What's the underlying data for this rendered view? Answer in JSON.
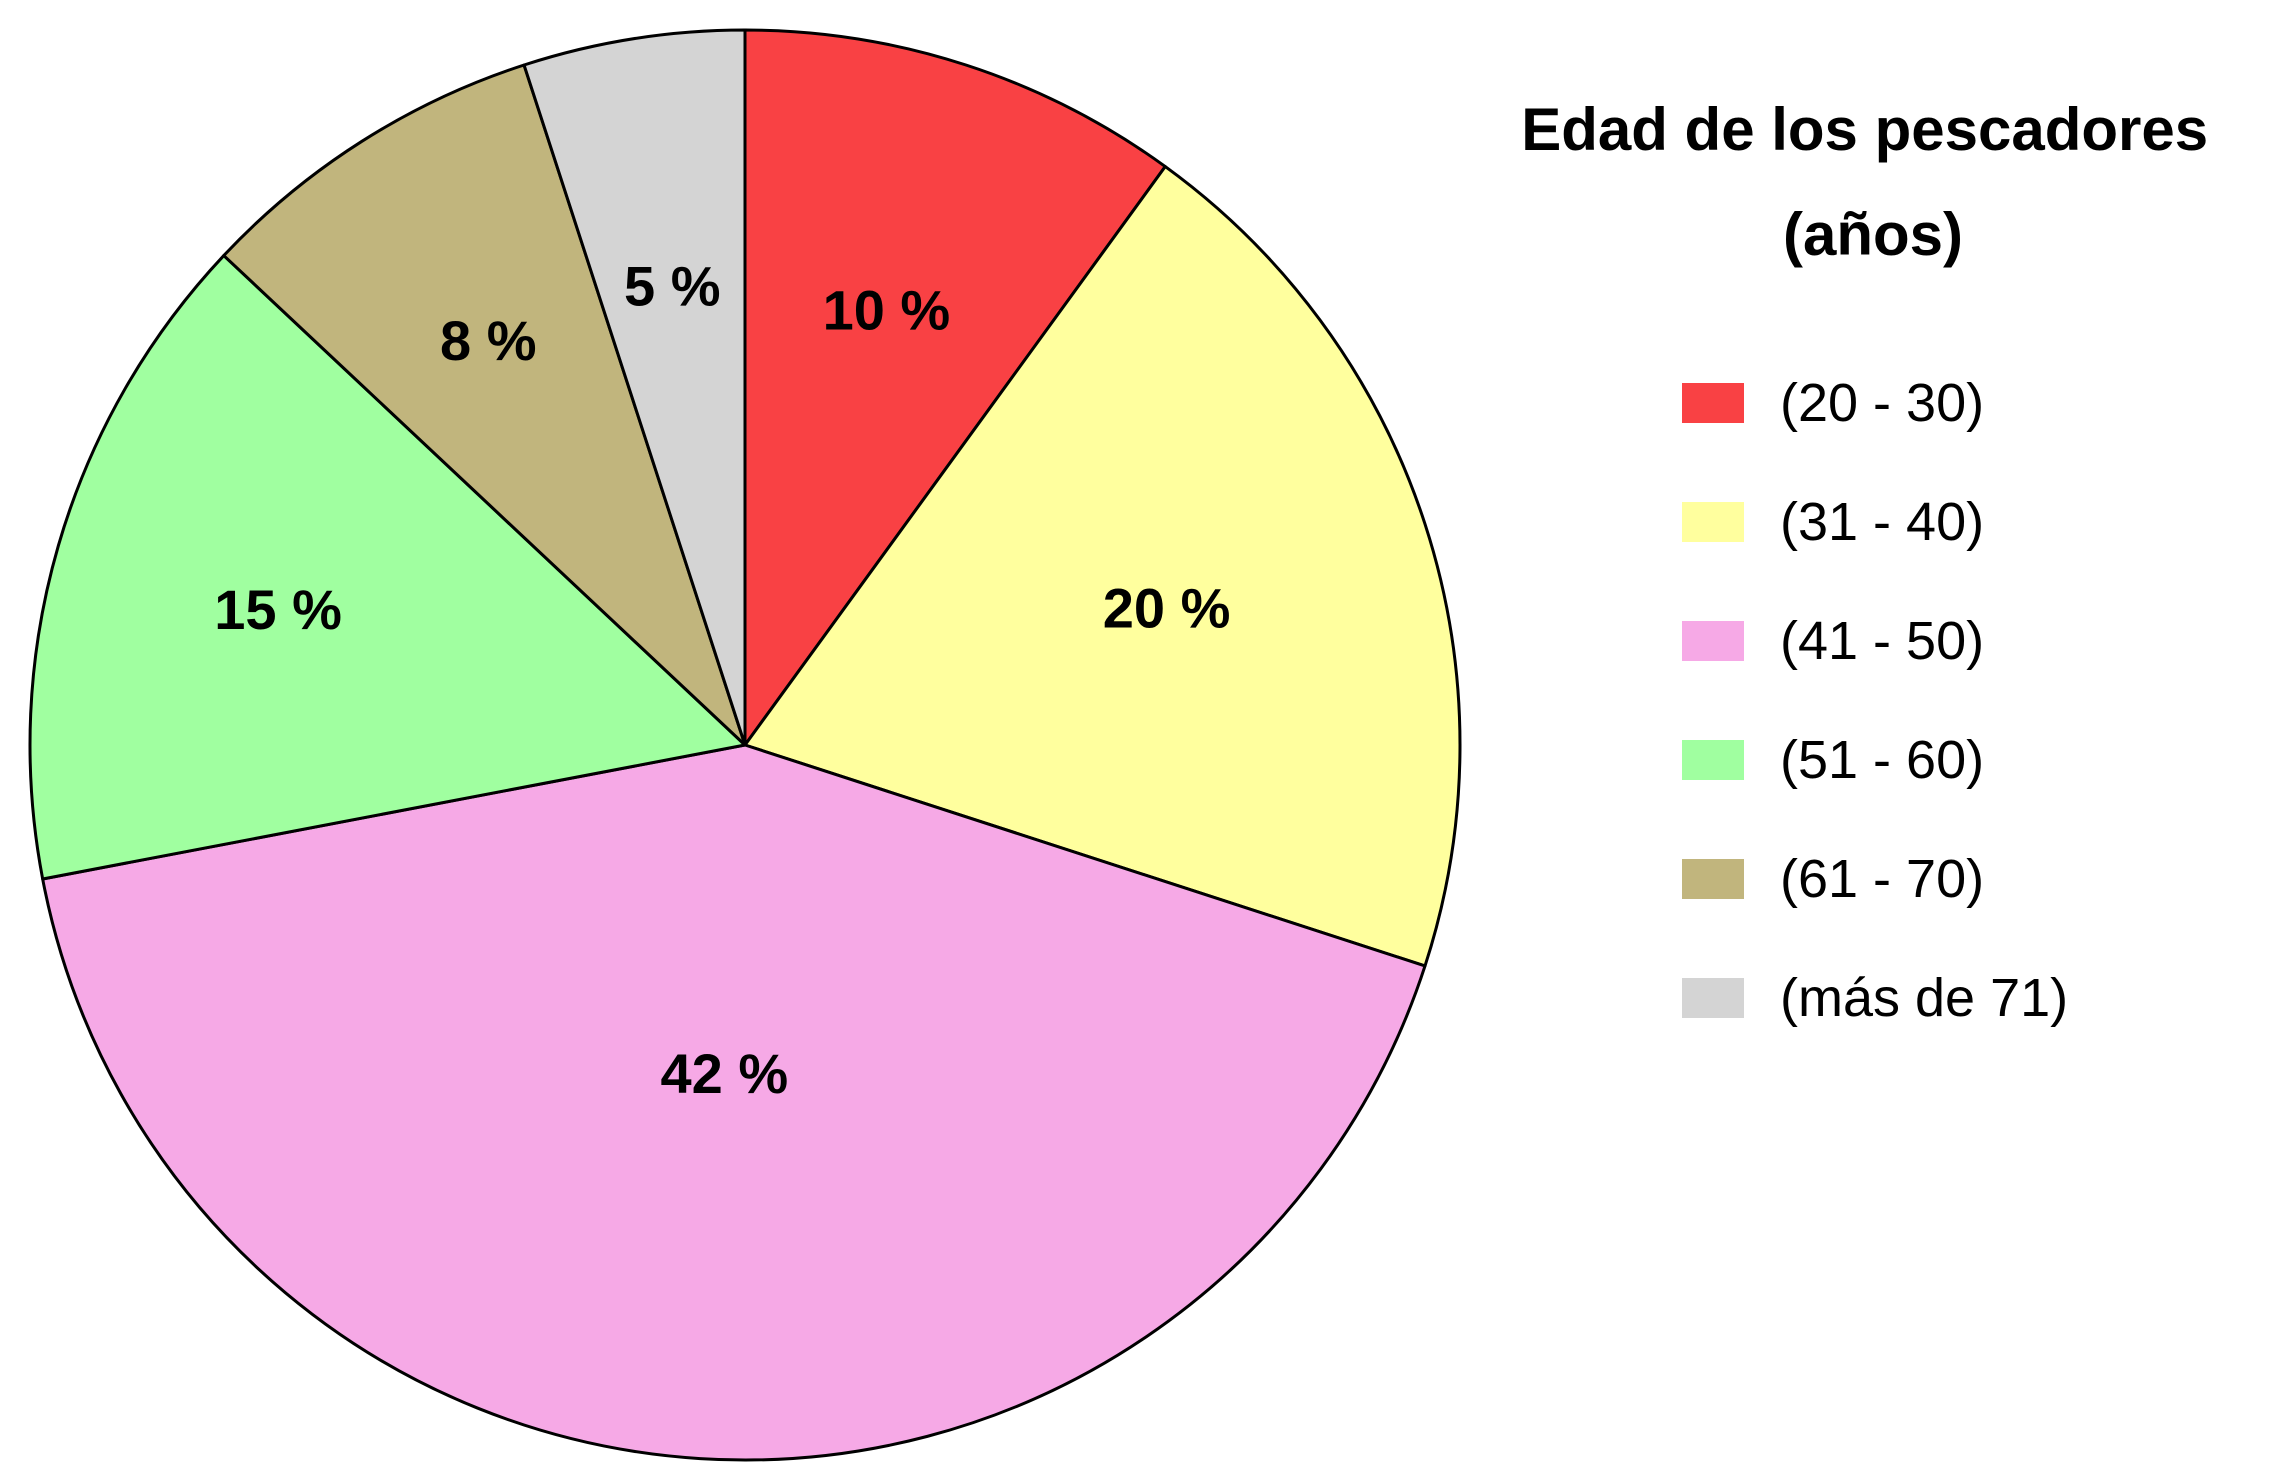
{
  "chart_data": {
    "type": "pie",
    "title": "Edad de los pescadores (años)",
    "title_lines": [
      "Edad de los pescadores",
      "(años)"
    ],
    "legend_position": "right",
    "unit": "%",
    "categories": [
      "(20 - 30)",
      "(31 - 40)",
      "(41 - 50)",
      "(51 - 60)",
      "(61 - 70)",
      "(más de 71)"
    ],
    "values": [
      10,
      20,
      42,
      15,
      8,
      5
    ],
    "labels": [
      "10 %",
      "20 %",
      "42 %",
      "15 %",
      "8 %",
      "5 %"
    ],
    "colors": [
      "#f94144",
      "#ffff9e",
      "#f6a9e6",
      "#a0ffa0",
      "#c1b57d",
      "#d4d4d4"
    ],
    "start_angle_deg": 0,
    "direction": "clockwise"
  }
}
